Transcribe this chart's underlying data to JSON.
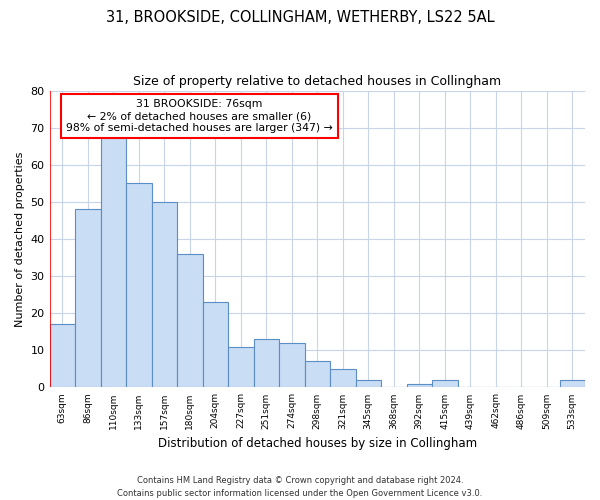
{
  "title1": "31, BROOKSIDE, COLLINGHAM, WETHERBY, LS22 5AL",
  "title2": "Size of property relative to detached houses in Collingham",
  "xlabel": "Distribution of detached houses by size in Collingham",
  "ylabel": "Number of detached properties",
  "categories": [
    "63sqm",
    "86sqm",
    "110sqm",
    "133sqm",
    "157sqm",
    "180sqm",
    "204sqm",
    "227sqm",
    "251sqm",
    "274sqm",
    "298sqm",
    "321sqm",
    "345sqm",
    "368sqm",
    "392sqm",
    "415sqm",
    "439sqm",
    "462sqm",
    "486sqm",
    "509sqm",
    "533sqm"
  ],
  "values": [
    17,
    48,
    68,
    55,
    50,
    36,
    23,
    11,
    13,
    12,
    7,
    5,
    2,
    0,
    1,
    2,
    0,
    0,
    0,
    0,
    2
  ],
  "bar_color": "#c9ddf5",
  "bar_edge_color": "#5b8ec4",
  "ylim": [
    0,
    80
  ],
  "yticks": [
    0,
    10,
    20,
    30,
    40,
    50,
    60,
    70,
    80
  ],
  "annotation_line1": "31 BROOKSIDE: 76sqm",
  "annotation_line2": "← 2% of detached houses are smaller (6)",
  "annotation_line3": "98% of semi-detached houses are larger (347) →",
  "vline_x": -0.5,
  "footer1": "Contains HM Land Registry data © Crown copyright and database right 2024.",
  "footer2": "Contains public sector information licensed under the Open Government Licence v3.0.",
  "bg_color": "#ffffff",
  "grid_color": "#c8d4e8"
}
